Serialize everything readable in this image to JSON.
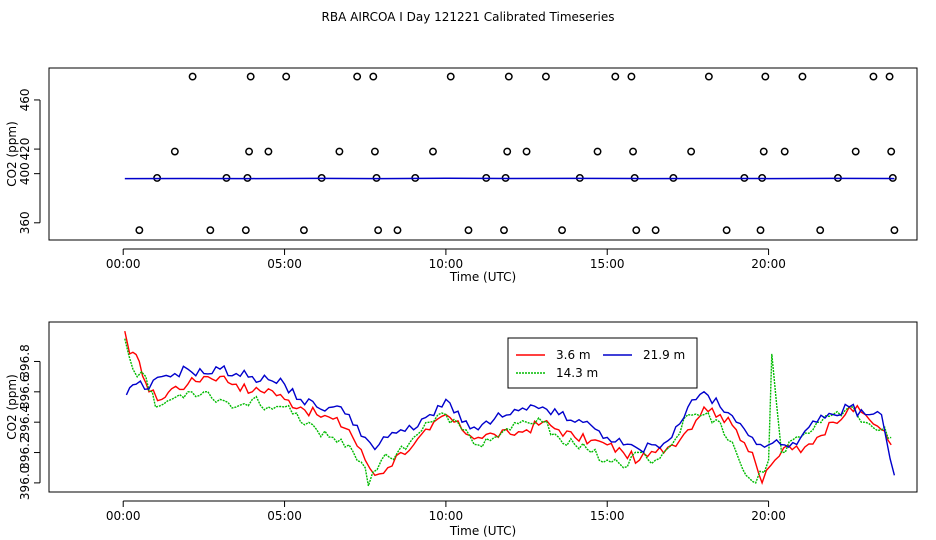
{
  "title": "RBA AIRCOA I  Day 121221  Calibrated Timeseries",
  "chart_data": [
    {
      "type": "scatter+line",
      "xlabel": "Time (UTC)",
      "ylabel": "CO2 (ppm)",
      "xlim": [
        -2.3,
        24.6
      ],
      "ylim": [
        346,
        486
      ],
      "x_ticks": [
        0,
        5,
        10,
        15,
        20
      ],
      "x_tick_labels": [
        "00:00",
        "05:00",
        "10:00",
        "15:00",
        "20:00"
      ],
      "y_ticks": [
        360,
        400,
        420,
        460
      ],
      "y_tick_labels": [
        "360",
        "400",
        "420",
        "460"
      ],
      "line_color": "#0000cc",
      "line_series": {
        "x": [
          0.05,
          2.0,
          4.0,
          6.0,
          8.0,
          10.0,
          12.0,
          14.0,
          16.0,
          18.0,
          20.0,
          22.0,
          23.9
        ],
        "y": [
          396.0,
          396.1,
          396.0,
          396.2,
          396.0,
          396.3,
          396.1,
          396.2,
          396.0,
          396.1,
          396.0,
          396.2,
          396.0
        ]
      },
      "points": [
        [
          0.5,
          354
        ],
        [
          1.05,
          396.5
        ],
        [
          1.6,
          418
        ],
        [
          2.15,
          479
        ],
        [
          2.7,
          354
        ],
        [
          3.2,
          396.5
        ],
        [
          3.8,
          354
        ],
        [
          3.85,
          396.5
        ],
        [
          3.9,
          418
        ],
        [
          3.95,
          479
        ],
        [
          4.5,
          418
        ],
        [
          5.05,
          479
        ],
        [
          5.6,
          354
        ],
        [
          6.15,
          396.5
        ],
        [
          6.7,
          418
        ],
        [
          7.25,
          479
        ],
        [
          7.75,
          479
        ],
        [
          7.8,
          418
        ],
        [
          7.85,
          396.5
        ],
        [
          7.9,
          354
        ],
        [
          8.5,
          354
        ],
        [
          9.05,
          396.5
        ],
        [
          9.6,
          418
        ],
        [
          10.15,
          479
        ],
        [
          10.7,
          354
        ],
        [
          11.25,
          396.5
        ],
        [
          11.8,
          354
        ],
        [
          11.85,
          396.5
        ],
        [
          11.9,
          418
        ],
        [
          11.95,
          479
        ],
        [
          12.5,
          418
        ],
        [
          13.1,
          479
        ],
        [
          13.6,
          354
        ],
        [
          14.15,
          396.5
        ],
        [
          14.7,
          418
        ],
        [
          15.25,
          479
        ],
        [
          15.75,
          479
        ],
        [
          15.8,
          418
        ],
        [
          15.85,
          396.5
        ],
        [
          15.9,
          354
        ],
        [
          16.5,
          354
        ],
        [
          17.05,
          396.5
        ],
        [
          17.6,
          418
        ],
        [
          18.15,
          479
        ],
        [
          18.7,
          354
        ],
        [
          19.25,
          396.5
        ],
        [
          19.75,
          354
        ],
        [
          19.8,
          396.5
        ],
        [
          19.85,
          418
        ],
        [
          19.9,
          479
        ],
        [
          20.5,
          418
        ],
        [
          21.05,
          479
        ],
        [
          21.6,
          354
        ],
        [
          22.15,
          396.5
        ],
        [
          22.7,
          418
        ],
        [
          23.25,
          479
        ],
        [
          23.75,
          479
        ],
        [
          23.8,
          418
        ],
        [
          23.85,
          396.5
        ],
        [
          23.9,
          354
        ]
      ]
    },
    {
      "type": "line",
      "xlabel": "Time (UTC)",
      "ylabel": "CO2 (ppm)",
      "xlim": [
        -2.3,
        24.6
      ],
      "ylim": [
        395.94,
        397.06
      ],
      "x_ticks": [
        0,
        5,
        10,
        15,
        20
      ],
      "x_tick_labels": [
        "00:00",
        "05:00",
        "10:00",
        "15:00",
        "20:00"
      ],
      "y_ticks": [
        396.0,
        396.2,
        396.4,
        396.6,
        396.8
      ],
      "y_tick_labels": [
        "396.0",
        "396.2",
        "396.4",
        "396.6",
        "396.8"
      ],
      "legend": {
        "position": "top-center"
      },
      "series": [
        {
          "name": "3.6 m",
          "color": "#ff0000",
          "anchors": [
            [
              0.05,
              397.0
            ],
            [
              0.2,
              396.85
            ],
            [
              0.5,
              396.8
            ],
            [
              0.8,
              396.6
            ],
            [
              1.2,
              396.55
            ],
            [
              1.5,
              396.62
            ],
            [
              2.0,
              396.65
            ],
            [
              2.5,
              396.7
            ],
            [
              3.0,
              396.7
            ],
            [
              3.5,
              396.65
            ],
            [
              4.0,
              396.6
            ],
            [
              4.5,
              396.62
            ],
            [
              5.0,
              396.55
            ],
            [
              5.5,
              396.5
            ],
            [
              6.0,
              396.45
            ],
            [
              6.5,
              396.42
            ],
            [
              7.0,
              396.35
            ],
            [
              7.5,
              396.15
            ],
            [
              7.8,
              396.05
            ],
            [
              8.2,
              396.1
            ],
            [
              8.6,
              396.2
            ],
            [
              9.0,
              396.25
            ],
            [
              9.5,
              396.35
            ],
            [
              10.0,
              396.45
            ],
            [
              10.5,
              396.35
            ],
            [
              11.0,
              396.3
            ],
            [
              11.5,
              396.32
            ],
            [
              12.0,
              396.32
            ],
            [
              12.5,
              396.35
            ],
            [
              13.0,
              396.4
            ],
            [
              13.5,
              396.35
            ],
            [
              14.0,
              396.3
            ],
            [
              14.5,
              396.28
            ],
            [
              15.0,
              396.25
            ],
            [
              15.5,
              396.2
            ],
            [
              16.0,
              396.15
            ],
            [
              16.5,
              396.2
            ],
            [
              17.0,
              396.25
            ],
            [
              17.5,
              396.35
            ],
            [
              18.0,
              396.5
            ],
            [
              18.5,
              396.45
            ],
            [
              19.0,
              396.35
            ],
            [
              19.5,
              396.2
            ],
            [
              19.8,
              396.0
            ],
            [
              20.2,
              396.15
            ],
            [
              20.6,
              396.25
            ],
            [
              21.0,
              396.2
            ],
            [
              21.5,
              396.3
            ],
            [
              22.0,
              396.4
            ],
            [
              22.5,
              396.5
            ],
            [
              23.0,
              396.45
            ],
            [
              23.5,
              396.35
            ],
            [
              23.8,
              396.25
            ]
          ]
        },
        {
          "name": "14.3 m",
          "color": "#00bb00",
          "anchors": [
            [
              0.05,
              396.95
            ],
            [
              0.3,
              396.75
            ],
            [
              0.7,
              396.7
            ],
            [
              1.0,
              396.5
            ],
            [
              1.5,
              396.55
            ],
            [
              2.0,
              396.6
            ],
            [
              2.5,
              396.6
            ],
            [
              3.0,
              396.55
            ],
            [
              3.5,
              396.5
            ],
            [
              4.0,
              396.55
            ],
            [
              4.5,
              396.5
            ],
            [
              5.0,
              396.5
            ],
            [
              5.5,
              396.4
            ],
            [
              6.0,
              396.35
            ],
            [
              6.5,
              396.3
            ],
            [
              7.0,
              396.25
            ],
            [
              7.5,
              396.1
            ],
            [
              7.6,
              395.98
            ],
            [
              8.0,
              396.15
            ],
            [
              8.5,
              396.2
            ],
            [
              9.0,
              396.3
            ],
            [
              9.5,
              396.4
            ],
            [
              10.0,
              396.45
            ],
            [
              10.5,
              396.35
            ],
            [
              11.0,
              396.25
            ],
            [
              11.5,
              396.3
            ],
            [
              12.0,
              396.35
            ],
            [
              12.5,
              396.4
            ],
            [
              13.0,
              396.4
            ],
            [
              13.5,
              396.3
            ],
            [
              14.0,
              396.25
            ],
            [
              14.5,
              396.2
            ],
            [
              15.0,
              396.15
            ],
            [
              15.5,
              396.1
            ],
            [
              16.0,
              396.2
            ],
            [
              16.5,
              396.15
            ],
            [
              17.0,
              396.25
            ],
            [
              17.5,
              396.45
            ],
            [
              18.0,
              396.45
            ],
            [
              18.5,
              396.4
            ],
            [
              19.0,
              396.2
            ],
            [
              19.3,
              396.05
            ],
            [
              19.6,
              396.0
            ],
            [
              20.0,
              396.15
            ],
            [
              20.1,
              396.85
            ],
            [
              20.4,
              396.2
            ],
            [
              21.0,
              396.3
            ],
            [
              21.5,
              396.4
            ],
            [
              22.0,
              396.45
            ],
            [
              22.5,
              396.5
            ],
            [
              23.0,
              396.4
            ],
            [
              23.5,
              396.35
            ],
            [
              23.8,
              396.3
            ]
          ]
        },
        {
          "name": "21.9 m",
          "color": "#0000cc",
          "anchors": [
            [
              0.1,
              396.58
            ],
            [
              0.4,
              396.65
            ],
            [
              0.8,
              396.62
            ],
            [
              1.2,
              396.7
            ],
            [
              1.6,
              396.72
            ],
            [
              2.0,
              396.75
            ],
            [
              2.5,
              396.72
            ],
            [
              3.0,
              396.75
            ],
            [
              3.5,
              396.72
            ],
            [
              4.0,
              396.7
            ],
            [
              4.5,
              396.68
            ],
            [
              5.0,
              396.65
            ],
            [
              5.5,
              396.55
            ],
            [
              6.0,
              396.5
            ],
            [
              6.5,
              396.5
            ],
            [
              7.0,
              396.45
            ],
            [
              7.5,
              396.3
            ],
            [
              7.8,
              396.22
            ],
            [
              8.2,
              396.3
            ],
            [
              8.6,
              396.35
            ],
            [
              9.0,
              396.35
            ],
            [
              9.5,
              396.45
            ],
            [
              10.0,
              396.55
            ],
            [
              10.5,
              396.4
            ],
            [
              11.0,
              396.35
            ],
            [
              11.5,
              396.42
            ],
            [
              12.0,
              396.45
            ],
            [
              12.5,
              396.48
            ],
            [
              13.0,
              396.5
            ],
            [
              13.5,
              396.45
            ],
            [
              14.0,
              396.4
            ],
            [
              14.5,
              396.38
            ],
            [
              15.0,
              396.3
            ],
            [
              15.5,
              396.25
            ],
            [
              16.0,
              396.22
            ],
            [
              16.5,
              396.25
            ],
            [
              17.0,
              396.3
            ],
            [
              17.5,
              396.5
            ],
            [
              18.0,
              396.6
            ],
            [
              18.5,
              396.5
            ],
            [
              19.0,
              396.4
            ],
            [
              19.5,
              396.3
            ],
            [
              20.0,
              396.25
            ],
            [
              20.5,
              396.25
            ],
            [
              21.0,
              396.3
            ],
            [
              21.5,
              396.4
            ],
            [
              22.0,
              396.45
            ],
            [
              22.5,
              396.5
            ],
            [
              23.0,
              396.45
            ],
            [
              23.5,
              396.45
            ],
            [
              23.9,
              396.05
            ]
          ]
        }
      ]
    }
  ]
}
